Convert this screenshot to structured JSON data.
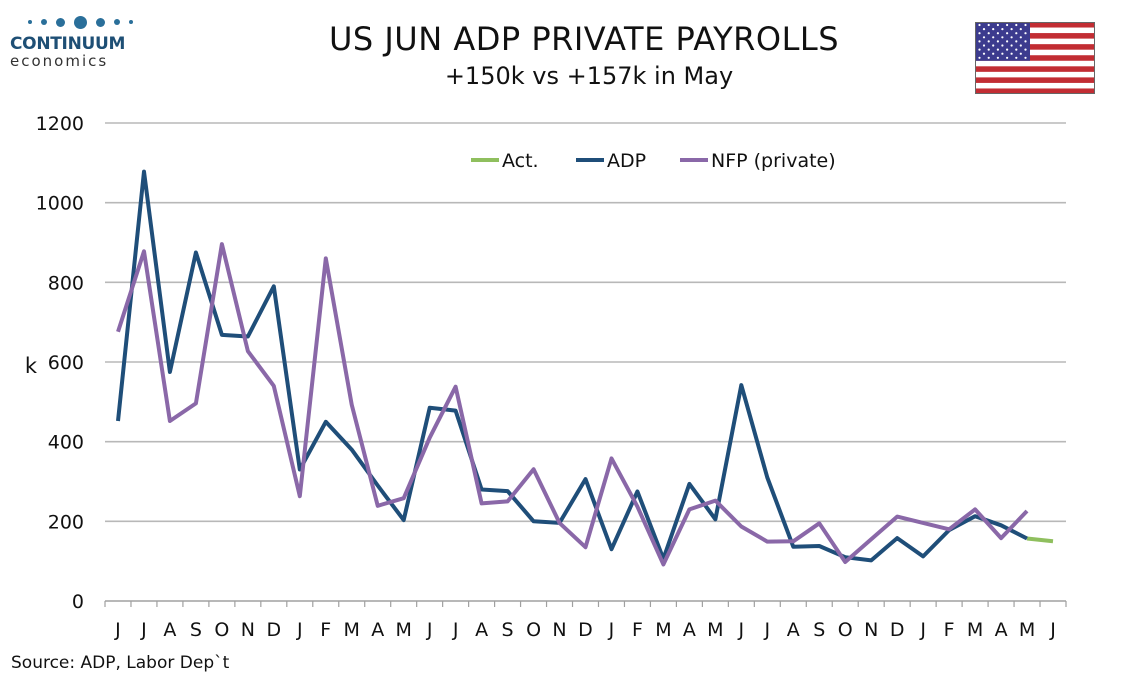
{
  "logo": {
    "brand": "CONTINUUM",
    "sub": "economics"
  },
  "title": "US JUN ADP PRIVATE PAYROLLS",
  "subtitle": "+150k vs +157k in May",
  "source": "Source: ADP, Labor Dep`t",
  "icons": {
    "flag": "us-flag-icon",
    "logo_dots": "logo-dots-icon"
  },
  "chart_data": {
    "type": "line",
    "ylabel": "k",
    "ylim": [
      0,
      1200
    ],
    "yticks": [
      0,
      200,
      400,
      600,
      800,
      1000,
      1200
    ],
    "grid": true,
    "legend_position": "top-right",
    "categories": [
      "J",
      "J",
      "A",
      "S",
      "O",
      "N",
      "D",
      "J",
      "F",
      "M",
      "A",
      "M",
      "J",
      "J",
      "A",
      "S",
      "O",
      "N",
      "D",
      "J",
      "F",
      "M",
      "A",
      "M",
      "J",
      "J",
      "A",
      "S",
      "O",
      "N",
      "D",
      "J",
      "F",
      "M",
      "A",
      "M",
      "J"
    ],
    "series": [
      {
        "name": "Act.",
        "color": "#8fbf5e",
        "values": [
          null,
          null,
          null,
          null,
          null,
          null,
          null,
          null,
          null,
          null,
          null,
          null,
          null,
          null,
          null,
          null,
          null,
          null,
          null,
          null,
          null,
          null,
          null,
          null,
          null,
          null,
          null,
          null,
          null,
          null,
          null,
          null,
          null,
          null,
          null,
          157,
          150
        ]
      },
      {
        "name": "ADP",
        "color": "#1f4e79",
        "values": [
          452,
          1078,
          575,
          875,
          668,
          664,
          790,
          330,
          450,
          380,
          290,
          203,
          485,
          478,
          280,
          276,
          200,
          196,
          306,
          130,
          275,
          106,
          294,
          205,
          542,
          310,
          136,
          138,
          110,
          102,
          158,
          112,
          178,
          213,
          190,
          157,
          null
        ]
      },
      {
        "name": "NFP (private)",
        "color": "#8a68a8",
        "values": [
          676,
          878,
          452,
          496,
          896,
          627,
          540,
          263,
          860,
          493,
          239,
          258,
          410,
          538,
          245,
          250,
          331,
          196,
          135,
          358,
          237,
          92,
          230,
          252,
          187,
          149,
          150,
          195,
          98,
          155,
          212,
          196,
          180,
          230,
          158,
          226,
          null
        ]
      }
    ]
  }
}
